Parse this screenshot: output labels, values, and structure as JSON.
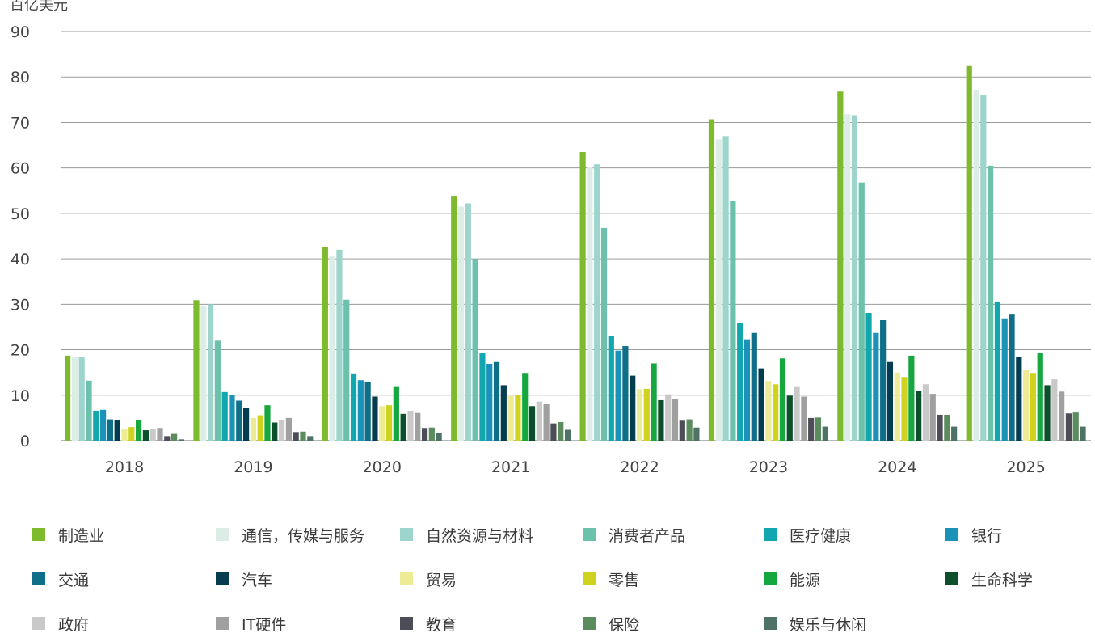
{
  "chart_data": {
    "type": "bar",
    "ylabel": "百亿美元",
    "ylim": [
      0,
      90
    ],
    "yticks": [
      0,
      10,
      20,
      30,
      40,
      50,
      60,
      70,
      80,
      90
    ],
    "grid": true,
    "legend_position": "bottom",
    "categories": [
      "2018",
      "2019",
      "2020",
      "2021",
      "2022",
      "2023",
      "2024",
      "2025"
    ],
    "series": [
      {
        "name": "制造业",
        "color": "#7dbb2c",
        "values": [
          18.7,
          30.9,
          42.6,
          53.7,
          63.5,
          70.7,
          76.8,
          82.4
        ]
      },
      {
        "name": "通信，传媒与服务",
        "color": "#dcede6",
        "values": [
          18.3,
          29.6,
          40.5,
          51.5,
          60.3,
          66.3,
          71.8,
          77.2
        ]
      },
      {
        "name": "自然资源与材料",
        "color": "#9dd5cc",
        "values": [
          18.5,
          30.0,
          42.0,
          52.2,
          60.8,
          67.0,
          71.6,
          76.0
        ]
      },
      {
        "name": "消费者产品",
        "color": "#6cc1ad",
        "values": [
          13.2,
          22.0,
          31.0,
          40.0,
          46.8,
          52.8,
          56.8,
          60.5
        ]
      },
      {
        "name": "医疗健康",
        "color": "#12a7ae",
        "values": [
          6.6,
          10.7,
          14.8,
          19.2,
          23.0,
          25.9,
          28.1,
          30.6
        ]
      },
      {
        "name": "银行",
        "color": "#1b93b8",
        "values": [
          6.8,
          10.0,
          13.3,
          16.9,
          19.8,
          22.3,
          23.7,
          26.9
        ]
      },
      {
        "name": "交通",
        "color": "#0f6e88",
        "values": [
          4.7,
          8.8,
          13.0,
          17.3,
          20.8,
          23.7,
          26.5,
          27.9
        ]
      },
      {
        "name": "汽车",
        "color": "#063c4f",
        "values": [
          4.5,
          7.2,
          9.7,
          12.2,
          14.3,
          15.9,
          17.3,
          18.4
        ]
      },
      {
        "name": "贸易",
        "color": "#eeeb96",
        "values": [
          2.5,
          5.0,
          7.6,
          9.8,
          11.3,
          13.1,
          15.0,
          15.5
        ]
      },
      {
        "name": "零售",
        "color": "#cfd21f",
        "values": [
          3.0,
          5.6,
          7.8,
          10.0,
          11.4,
          12.4,
          14.0,
          14.9
        ]
      },
      {
        "name": "能源",
        "color": "#16a73f",
        "values": [
          4.5,
          7.8,
          11.8,
          14.9,
          17.0,
          18.1,
          18.7,
          19.3
        ]
      },
      {
        "name": "生命科学",
        "color": "#0d4e2c",
        "values": [
          2.3,
          4.0,
          5.9,
          7.6,
          8.9,
          9.9,
          11.0,
          12.2
        ]
      },
      {
        "name": "政府",
        "color": "#c9c9c9",
        "values": [
          2.5,
          4.5,
          6.6,
          8.6,
          10.2,
          11.8,
          12.4,
          13.5
        ]
      },
      {
        "name": "IT硬件",
        "color": "#a0a0a0",
        "values": [
          2.8,
          5.0,
          6.1,
          8.0,
          9.1,
          9.7,
          10.3,
          10.8
        ]
      },
      {
        "name": "教育",
        "color": "#4d4d57",
        "values": [
          1.0,
          1.9,
          2.8,
          3.8,
          4.4,
          5.0,
          5.7,
          6.0
        ]
      },
      {
        "name": "保险",
        "color": "#5b8c5e",
        "values": [
          1.5,
          2.0,
          2.9,
          4.1,
          4.7,
          5.1,
          5.7,
          6.2
        ]
      },
      {
        "name": "娱乐与休闲",
        "color": "#4f7266",
        "values": [
          0.3,
          1.0,
          1.6,
          2.4,
          2.9,
          3.1,
          3.1,
          3.1
        ]
      }
    ]
  },
  "legend": {
    "items": [
      {
        "label": "制造业",
        "color": "#7dbb2c"
      },
      {
        "label": "通信，传媒与服务",
        "color": "#dcede6"
      },
      {
        "label": "自然资源与材料",
        "color": "#9dd5cc"
      },
      {
        "label": "消费者产品",
        "color": "#6cc1ad"
      },
      {
        "label": "医疗健康",
        "color": "#12a7ae"
      },
      {
        "label": "银行",
        "color": "#1b93b8"
      },
      {
        "label": "交通",
        "color": "#0f6e88"
      },
      {
        "label": "汽车",
        "color": "#063c4f"
      },
      {
        "label": "贸易",
        "color": "#eeeb96"
      },
      {
        "label": "零售",
        "color": "#cfd21f"
      },
      {
        "label": "能源",
        "color": "#16a73f"
      },
      {
        "label": "生命科学",
        "color": "#0d4e2c"
      },
      {
        "label": "政府",
        "color": "#c9c9c9"
      },
      {
        "label": "IT硬件",
        "color": "#a0a0a0"
      },
      {
        "label": "教育",
        "color": "#4d4d57"
      },
      {
        "label": "保险",
        "color": "#5b8c5e"
      },
      {
        "label": "娱乐与休闲",
        "color": "#4f7266"
      }
    ]
  }
}
